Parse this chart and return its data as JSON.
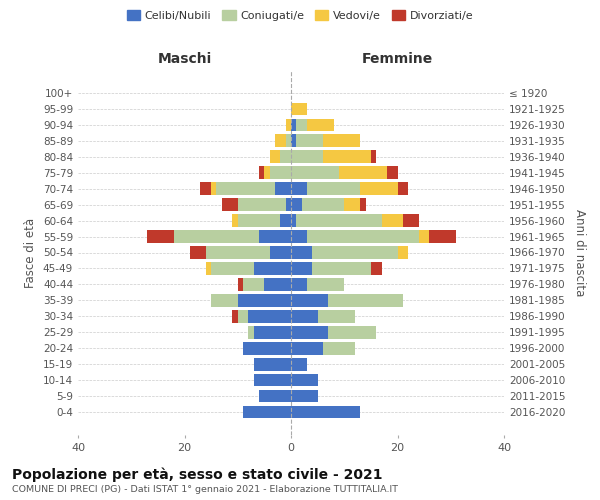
{
  "age_groups": [
    "0-4",
    "5-9",
    "10-14",
    "15-19",
    "20-24",
    "25-29",
    "30-34",
    "35-39",
    "40-44",
    "45-49",
    "50-54",
    "55-59",
    "60-64",
    "65-69",
    "70-74",
    "75-79",
    "80-84",
    "85-89",
    "90-94",
    "95-99",
    "100+"
  ],
  "birth_years": [
    "2016-2020",
    "2011-2015",
    "2006-2010",
    "2001-2005",
    "1996-2000",
    "1991-1995",
    "1986-1990",
    "1981-1985",
    "1976-1980",
    "1971-1975",
    "1966-1970",
    "1961-1965",
    "1956-1960",
    "1951-1955",
    "1946-1950",
    "1941-1945",
    "1936-1940",
    "1931-1935",
    "1926-1930",
    "1921-1925",
    "≤ 1920"
  ],
  "colors": {
    "celibi": "#4472c4",
    "coniugati": "#b8cfa0",
    "vedovi": "#f5c842",
    "divorziati": "#c0392b"
  },
  "maschi": {
    "celibi": [
      9,
      6,
      7,
      7,
      9,
      7,
      8,
      10,
      5,
      7,
      4,
      6,
      2,
      1,
      3,
      0,
      0,
      0,
      0,
      0,
      0
    ],
    "coniugati": [
      0,
      0,
      0,
      0,
      0,
      1,
      2,
      5,
      4,
      8,
      12,
      16,
      8,
      9,
      11,
      4,
      2,
      1,
      0,
      0,
      0
    ],
    "vedovi": [
      0,
      0,
      0,
      0,
      0,
      0,
      0,
      0,
      0,
      1,
      0,
      0,
      1,
      0,
      1,
      1,
      2,
      2,
      1,
      0,
      0
    ],
    "divorziati": [
      0,
      0,
      0,
      0,
      0,
      0,
      1,
      0,
      1,
      0,
      3,
      5,
      0,
      3,
      2,
      1,
      0,
      0,
      0,
      0,
      0
    ]
  },
  "femmine": {
    "celibi": [
      13,
      5,
      5,
      3,
      6,
      7,
      5,
      7,
      3,
      4,
      4,
      3,
      1,
      2,
      3,
      0,
      0,
      1,
      1,
      0,
      0
    ],
    "coniugati": [
      0,
      0,
      0,
      0,
      6,
      9,
      7,
      14,
      7,
      11,
      16,
      21,
      16,
      8,
      10,
      9,
      6,
      5,
      2,
      0,
      0
    ],
    "vedovi": [
      0,
      0,
      0,
      0,
      0,
      0,
      0,
      0,
      0,
      0,
      2,
      2,
      4,
      3,
      7,
      9,
      9,
      7,
      5,
      3,
      0
    ],
    "divorziati": [
      0,
      0,
      0,
      0,
      0,
      0,
      0,
      0,
      0,
      2,
      0,
      5,
      3,
      1,
      2,
      2,
      1,
      0,
      0,
      0,
      0
    ]
  },
  "xlim": 40,
  "title": "Popolazione per età, sesso e stato civile - 2021",
  "subtitle": "COMUNE DI PRECI (PG) - Dati ISTAT 1° gennaio 2021 - Elaborazione TUTTITALIA.IT",
  "xlabel_left": "Maschi",
  "xlabel_right": "Femmine",
  "ylabel_left": "Fasce di età",
  "ylabel_right": "Anni di nascita",
  "legend_labels": [
    "Celibi/Nubili",
    "Coniugati/e",
    "Vedovi/e",
    "Divorziati/e"
  ],
  "bg_color": "#ffffff",
  "grid_color": "#cccccc"
}
